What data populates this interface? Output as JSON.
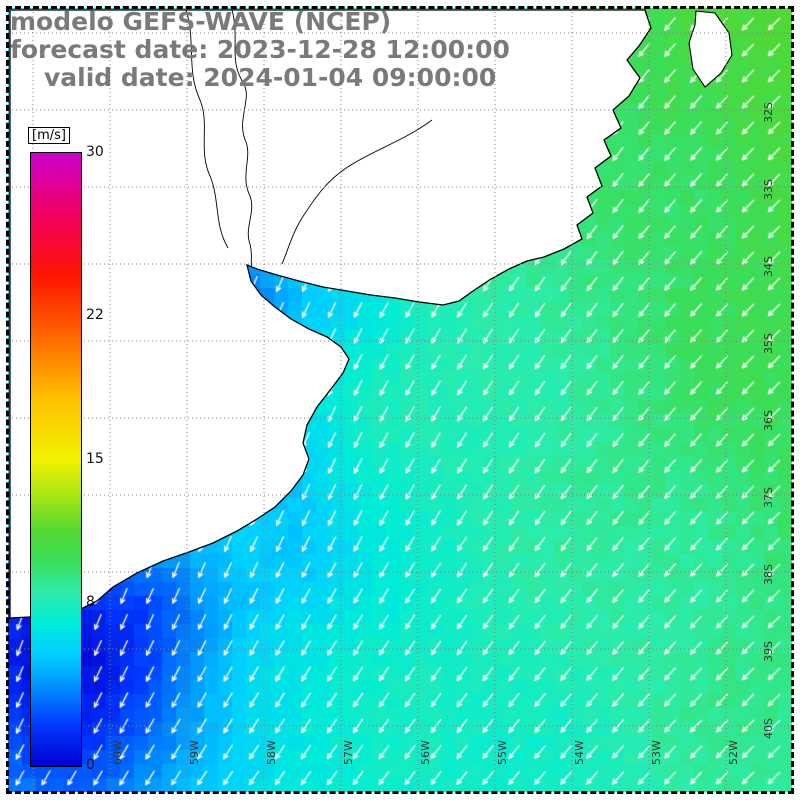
{
  "header": {
    "line1": "modelo GEFS-WAVE (NCEP)",
    "line2": "forecast date: 2023-12-28 12:00:00",
    "line3": "valid date: 2024-01-04 09:00:00",
    "text_color": "#7a7a7a"
  },
  "colorbar": {
    "unit_label": "[m/s]",
    "min": 0,
    "max": 30,
    "tick_values": [
      30,
      22,
      15,
      8,
      0
    ],
    "tick_labels": [
      "30",
      "22",
      "15",
      "8",
      "0"
    ],
    "stops": [
      {
        "value": 0,
        "color": "#0000d2"
      },
      {
        "value": 2,
        "color": "#0038ff"
      },
      {
        "value": 4,
        "color": "#0095ff"
      },
      {
        "value": 5.5,
        "color": "#00d0ff"
      },
      {
        "value": 7,
        "color": "#00ecd8"
      },
      {
        "value": 8.5,
        "color": "#2cecaa"
      },
      {
        "value": 10,
        "color": "#3ade5a"
      },
      {
        "value": 11.5,
        "color": "#52d830"
      },
      {
        "value": 13,
        "color": "#9ce418"
      },
      {
        "value": 15,
        "color": "#f2f200"
      },
      {
        "value": 18,
        "color": "#ffc000"
      },
      {
        "value": 21,
        "color": "#ff6800"
      },
      {
        "value": 24,
        "color": "#ff1400"
      },
      {
        "value": 27,
        "color": "#f00060"
      },
      {
        "value": 30,
        "color": "#cc00cc"
      }
    ]
  },
  "map": {
    "lon_labels": [
      "60W",
      "59W",
      "58W",
      "57W",
      "56W",
      "55W",
      "54W",
      "53W",
      "52W"
    ],
    "lat_labels": [
      "32S",
      "33S",
      "34S",
      "35S",
      "36S",
      "37S",
      "38S",
      "39S",
      "40S"
    ],
    "grid_color": "#808080",
    "coastline_color": "#000000",
    "land_color": "#ffffff",
    "arrow_color": "#ffffff"
  },
  "chart_data": {
    "type": "heatmap",
    "title": "GEFS-WAVE (NCEP) wind speed forecast",
    "units": "m/s",
    "scale_range": [
      0,
      30
    ],
    "description": "Wind speed field (shaded, m/s) with wind direction arrows (white) over the ocean; white areas are land (coast around the Rio de la Plata). Arrows point generally toward the south-southwest (northeasterly flow), strongest green shading (~10-11 m/s) in the northeast, cyan (~7-8 m/s) in the south, blue patches (~3-5 m/s) along the western coast and southwest corner.",
    "cols_approx_lon": [
      "60W",
      "59W",
      "58W",
      "57W",
      "55W",
      "54W",
      "53W",
      "52W"
    ],
    "rows_approx_lat": [
      "32S",
      "33S",
      "34S",
      "35S",
      "37S",
      "38S",
      "39S",
      "40S"
    ],
    "values_note": "approximate wind speed in m/s on a coarse 8x8 grid read from the shading; null = land",
    "values": [
      [
        null,
        null,
        null,
        null,
        null,
        null,
        10.5,
        11
      ],
      [
        null,
        null,
        null,
        null,
        null,
        10,
        10,
        10.5
      ],
      [
        null,
        null,
        5,
        7,
        8,
        9.5,
        10,
        10
      ],
      [
        null,
        null,
        null,
        8,
        8.5,
        9,
        9,
        9.5
      ],
      [
        null,
        null,
        6,
        8,
        8,
        8.5,
        9,
        9
      ],
      [
        null,
        5,
        7,
        7.5,
        8,
        8,
        8.5,
        9
      ],
      [
        4,
        5,
        7,
        7,
        7.5,
        8,
        8,
        8.5
      ],
      [
        4,
        6,
        6.5,
        7,
        7.5,
        7.5,
        8,
        8
      ]
    ]
  }
}
